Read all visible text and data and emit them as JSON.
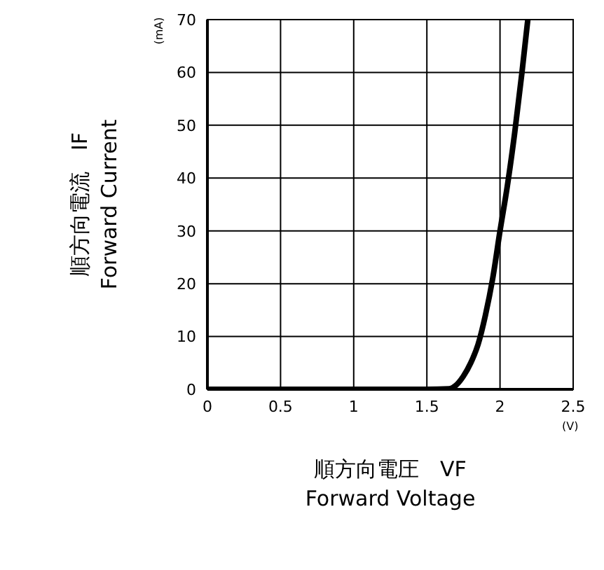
{
  "chart_data": {
    "type": "line",
    "xlabel": "順方向電圧　VF\nForward Voltage",
    "ylabel": "順方向電流　IF\nForward Current",
    "annotations": [
      "(mA)",
      "(V)"
    ],
    "x": [
      0,
      1.5,
      1.65,
      1.7,
      1.75,
      1.8,
      1.85,
      1.9,
      1.95,
      2.0,
      2.05,
      2.1,
      2.15,
      2.19
    ],
    "series": [
      {
        "color": "#000000",
        "values": [
          0,
          0,
          0.1,
          0.8,
          2.5,
          5,
          8.5,
          14,
          21,
          30,
          38.5,
          48.5,
          60,
          70
        ]
      }
    ],
    "xlim": [
      0,
      2.5
    ],
    "xticks": [
      0,
      0.5,
      1,
      1.5,
      2,
      2.5
    ],
    "ylim": [
      0,
      70
    ],
    "yticks": [
      0,
      10,
      20,
      30,
      40,
      50,
      60,
      70
    ],
    "grid": true,
    "marker": "none",
    "line_style": "solid"
  }
}
